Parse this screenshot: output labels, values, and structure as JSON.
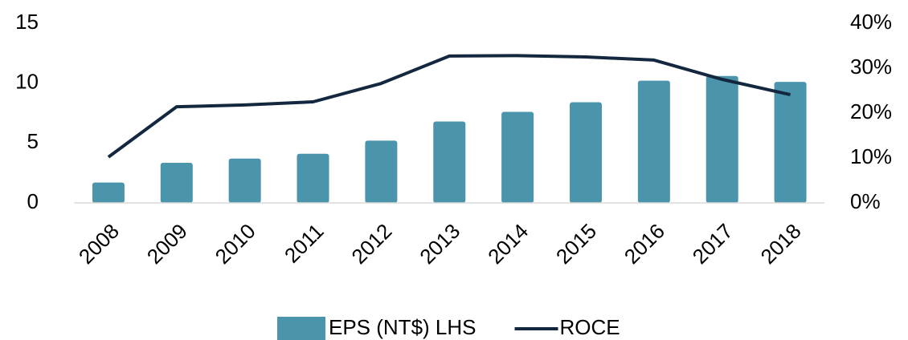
{
  "chart_data": {
    "type": "bar-line",
    "categories": [
      "2008",
      "2009",
      "2010",
      "2011",
      "2012",
      "2013",
      "2014",
      "2015",
      "2016",
      "2017",
      "2018"
    ],
    "series": [
      {
        "name": "EPS (NT$) LHS",
        "type": "bar",
        "color": "#4a95ab",
        "values": [
          1.7,
          3.35,
          3.7,
          4.1,
          5.2,
          6.8,
          7.6,
          8.4,
          10.2,
          10.6,
          10.1
        ]
      },
      {
        "name": "ROCE",
        "type": "line",
        "axis": "y2",
        "color": "#13283f",
        "values": [
          10.2,
          21.4,
          21.8,
          22.5,
          26.6,
          32.7,
          32.8,
          32.5,
          31.8,
          27.5,
          24.1
        ]
      }
    ],
    "ylim": [
      0,
      15
    ],
    "yticks": [
      0,
      5,
      10,
      15
    ],
    "y2lim": [
      0,
      40
    ],
    "y2ticks": [
      {
        "value": 0,
        "label": "0%"
      },
      {
        "value": 10,
        "label": "10%"
      },
      {
        "value": 20,
        "label": "20%"
      },
      {
        "value": 30,
        "label": "30%"
      },
      {
        "value": 40,
        "label": "40%"
      }
    ],
    "legend": "bottom",
    "grid": false
  }
}
